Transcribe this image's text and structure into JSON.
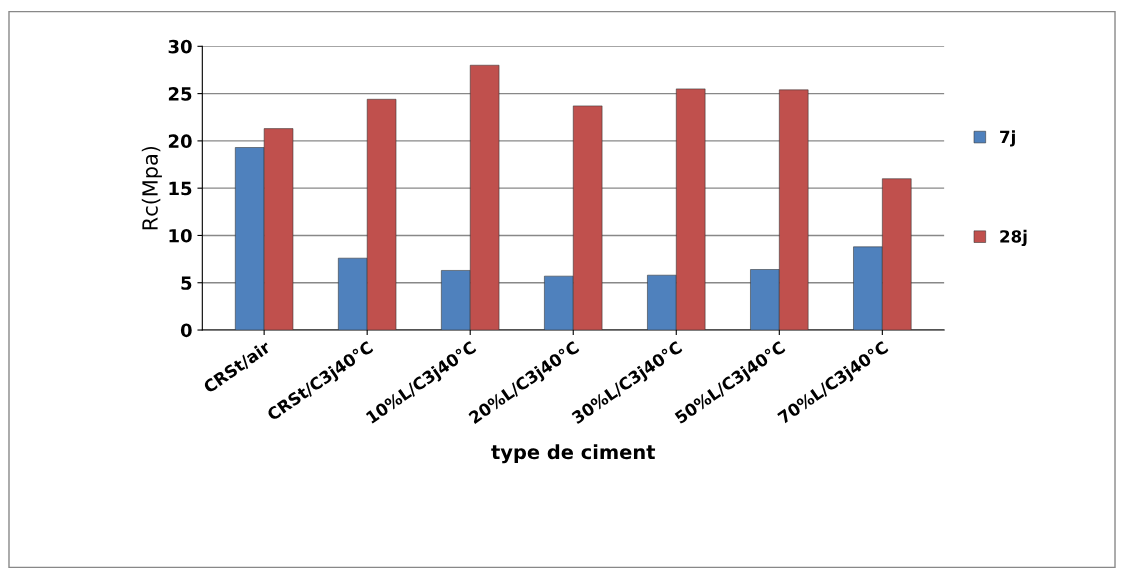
{
  "chart_data": {
    "type": "bar",
    "xlabel": "type de ciment",
    "ylabel": "Rc(Mpa)",
    "categories": [
      "CRSt/air",
      "CRSt/C3j40°C",
      "10%L/C3j40°C",
      "20%L/C3j40°C",
      "30%L/C3j40°C",
      "50%L/C3j40°C",
      "70%L/C3j40°C"
    ],
    "series": [
      {
        "name": "7j",
        "color": "#4f81bd",
        "values": [
          19.3,
          7.6,
          6.3,
          5.7,
          5.8,
          6.4,
          8.8
        ]
      },
      {
        "name": "28j",
        "color": "#c0504d",
        "values": [
          21.3,
          24.4,
          28.0,
          23.7,
          25.5,
          25.4,
          16.0
        ]
      }
    ],
    "ylim": [
      0,
      30
    ],
    "yticks": [
      0,
      5,
      10,
      15,
      20,
      25,
      30
    ],
    "grid": "y",
    "legend": "right"
  }
}
